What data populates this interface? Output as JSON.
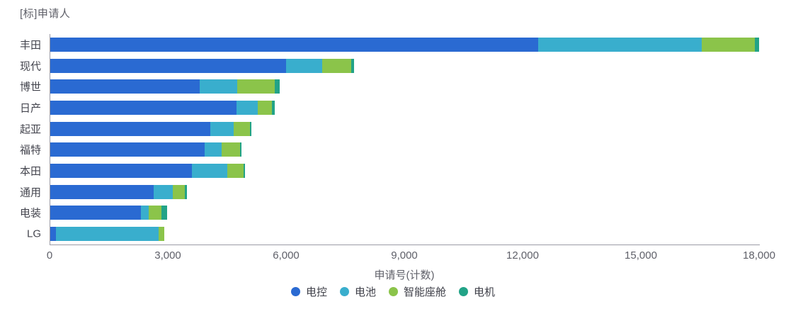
{
  "chart_data": {
    "type": "bar",
    "orientation": "horizontal",
    "stacked": true,
    "title": "[标]申请人",
    "xlabel": "申请号(计数)",
    "xmax": 18000,
    "grid": false,
    "legend_position": "bottom",
    "xticks": [
      {
        "label": "0",
        "value": 0
      },
      {
        "label": "3,000",
        "value": 3000
      },
      {
        "label": "6,000",
        "value": 6000
      },
      {
        "label": "9,000",
        "value": 9000
      },
      {
        "label": "12,000",
        "value": 12000
      },
      {
        "label": "15,000",
        "value": 15000
      },
      {
        "label": "18,000",
        "value": 18000
      }
    ],
    "categories": [
      "丰田",
      "现代",
      "博世",
      "日产",
      "起亚",
      "福特",
      "本田",
      "通用",
      "电装",
      "LG"
    ],
    "series": [
      {
        "name": "电控",
        "color": "#2a6ad2",
        "values": [
          12380,
          5980,
          3790,
          4730,
          4060,
          3920,
          3600,
          2620,
          2300,
          150
        ]
      },
      {
        "name": "电池",
        "color": "#39aecd",
        "values": [
          4150,
          910,
          950,
          530,
          600,
          430,
          900,
          490,
          200,
          2590
        ]
      },
      {
        "name": "智能座舱",
        "color": "#8bc44a",
        "values": [
          1350,
          740,
          950,
          360,
          400,
          470,
          400,
          300,
          320,
          160
        ]
      },
      {
        "name": "电机",
        "color": "#22a387",
        "values": [
          110,
          70,
          130,
          70,
          40,
          30,
          40,
          50,
          150,
          0
        ]
      }
    ]
  }
}
